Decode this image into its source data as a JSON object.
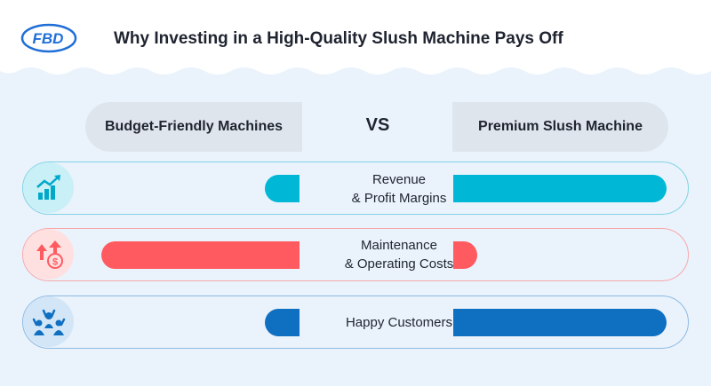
{
  "title": "Why Investing in a High-Quality Slush Machine Pays Off",
  "logo_text": "FBD",
  "columns": {
    "left": "Budget-Friendly Machines",
    "vs": "VS",
    "right": "Premium Slush Machine"
  },
  "colors": {
    "teal": "#00b8d6",
    "red": "#ff5a5f",
    "blue": "#0f6fc0"
  },
  "rows": [
    {
      "label_line1": "Revenue",
      "label_line2": "& Profit Margins",
      "icon": "growth-chart-icon"
    },
    {
      "label_line1": "Maintenance",
      "label_line2": "& Operating Costs",
      "icon": "rising-cost-icon"
    },
    {
      "label_line1": "Happy Customers",
      "label_line2": "",
      "icon": "happy-customers-icon"
    }
  ],
  "chart_data": {
    "type": "bar",
    "categories": [
      "Revenue & Profit Margins",
      "Maintenance & Operating Costs",
      "Happy Customers"
    ],
    "series": [
      {
        "name": "Budget-Friendly Machines",
        "values": [
          0.17,
          0.97,
          0.17
        ]
      },
      {
        "name": "Premium Slush Machine",
        "values": [
          0.98,
          0.11,
          0.98
        ]
      }
    ],
    "ylim": [
      0,
      1
    ]
  }
}
